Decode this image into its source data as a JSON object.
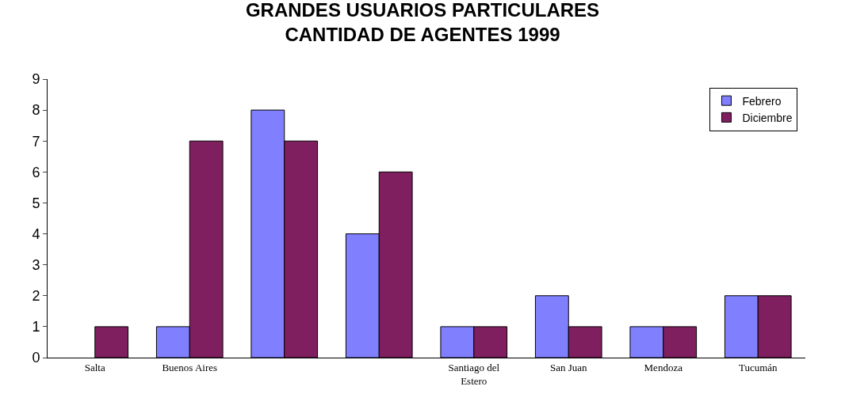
{
  "chart_data": {
    "type": "bar",
    "title": "GRANDES USUARIOS PARTICULARES\nCANTIDAD DE AGENTES 1999",
    "categories": [
      "Salta",
      "Buenos Aires",
      null,
      null,
      "Santiago del Estero",
      "San Juan",
      "Mendoza",
      "Tucumán"
    ],
    "series": [
      {
        "name": "Febrero",
        "color": "#8080ff",
        "values": [
          null,
          1,
          8,
          4,
          1,
          2,
          1,
          2
        ]
      },
      {
        "name": "Diciembre",
        "color": "#7f1f5f",
        "values": [
          1,
          7,
          7,
          6,
          1,
          1,
          1,
          2
        ]
      }
    ],
    "ylim": [
      0,
      9
    ],
    "yticks": [
      0,
      1,
      2,
      3,
      4,
      5,
      6,
      7,
      8,
      9
    ],
    "grid": false,
    "legend": "top right"
  }
}
